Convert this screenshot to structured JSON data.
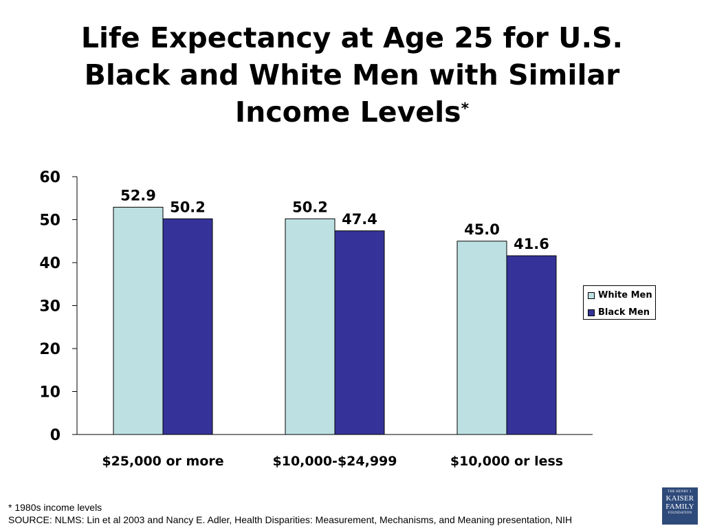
{
  "title": {
    "line1": "Life Expectancy at Age 25 for U.S.",
    "line2": "Black and White Men with Similar",
    "line3": "Income Levels",
    "marker": "*"
  },
  "chart_data": {
    "type": "bar",
    "categories": [
      "$25,000 or more",
      "$10,000-$24,999",
      "$10,000 or less"
    ],
    "series": [
      {
        "name": "White Men",
        "values": [
          52.9,
          50.2,
          45.0
        ],
        "labels": [
          "52.9",
          "50.2",
          "45.0"
        ],
        "color": "#bde0e3"
      },
      {
        "name": "Black Men",
        "values": [
          50.2,
          47.4,
          41.6
        ],
        "labels": [
          "50.2",
          "47.4",
          "41.6"
        ],
        "color": "#353399"
      }
    ],
    "ylim": [
      0,
      60
    ],
    "yticks": [
      0,
      10,
      20,
      30,
      40,
      50,
      60
    ],
    "grid": false,
    "legend_position": "right"
  },
  "footnotes": {
    "note": "* 1980s income levels",
    "source": "SOURCE: NLMS: Lin et al 2003 and Nancy E. Adler, Health Disparities: Measurement, Mechanisms, and Meaning presentation, NIH"
  },
  "logo": {
    "line1": "THE HENRY J.",
    "line2": "KAISER",
    "line3": "FAMILY",
    "line4": "FOUNDATION"
  }
}
